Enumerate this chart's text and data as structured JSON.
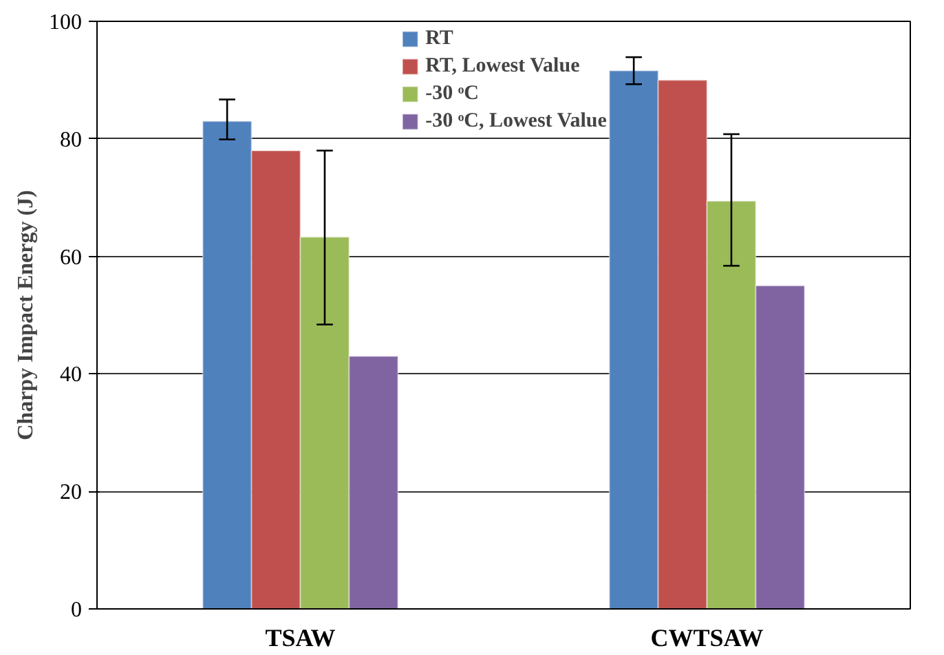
{
  "chart_data": {
    "type": "bar",
    "ylabel": "Charpy Impact Energy (J)",
    "categories": [
      "TSAW",
      "CWTSAW"
    ],
    "series": [
      {
        "name": "RT",
        "color": "#4f81bd",
        "values": [
          83,
          91.6
        ],
        "errors": [
          [
            79.9,
            86.7
          ],
          [
            89.3,
            93.9
          ]
        ]
      },
      {
        "name": "RT, Lowest Value",
        "color": "#c0504d",
        "values": [
          78,
          90
        ]
      },
      {
        "name": "-30 ᵒC",
        "color": "#9bbb59",
        "values": [
          63.3,
          69.4
        ],
        "errors": [
          [
            48.4,
            78
          ],
          [
            58.4,
            80.8
          ]
        ]
      },
      {
        "name": "-30 ᵒC, Lowest Value",
        "color": "#8064a2",
        "values": [
          43,
          55
        ]
      }
    ],
    "ylim": [
      0,
      100
    ],
    "yticks": [
      0,
      20,
      40,
      60,
      80,
      100
    ],
    "grid": "y",
    "legend": "top"
  }
}
